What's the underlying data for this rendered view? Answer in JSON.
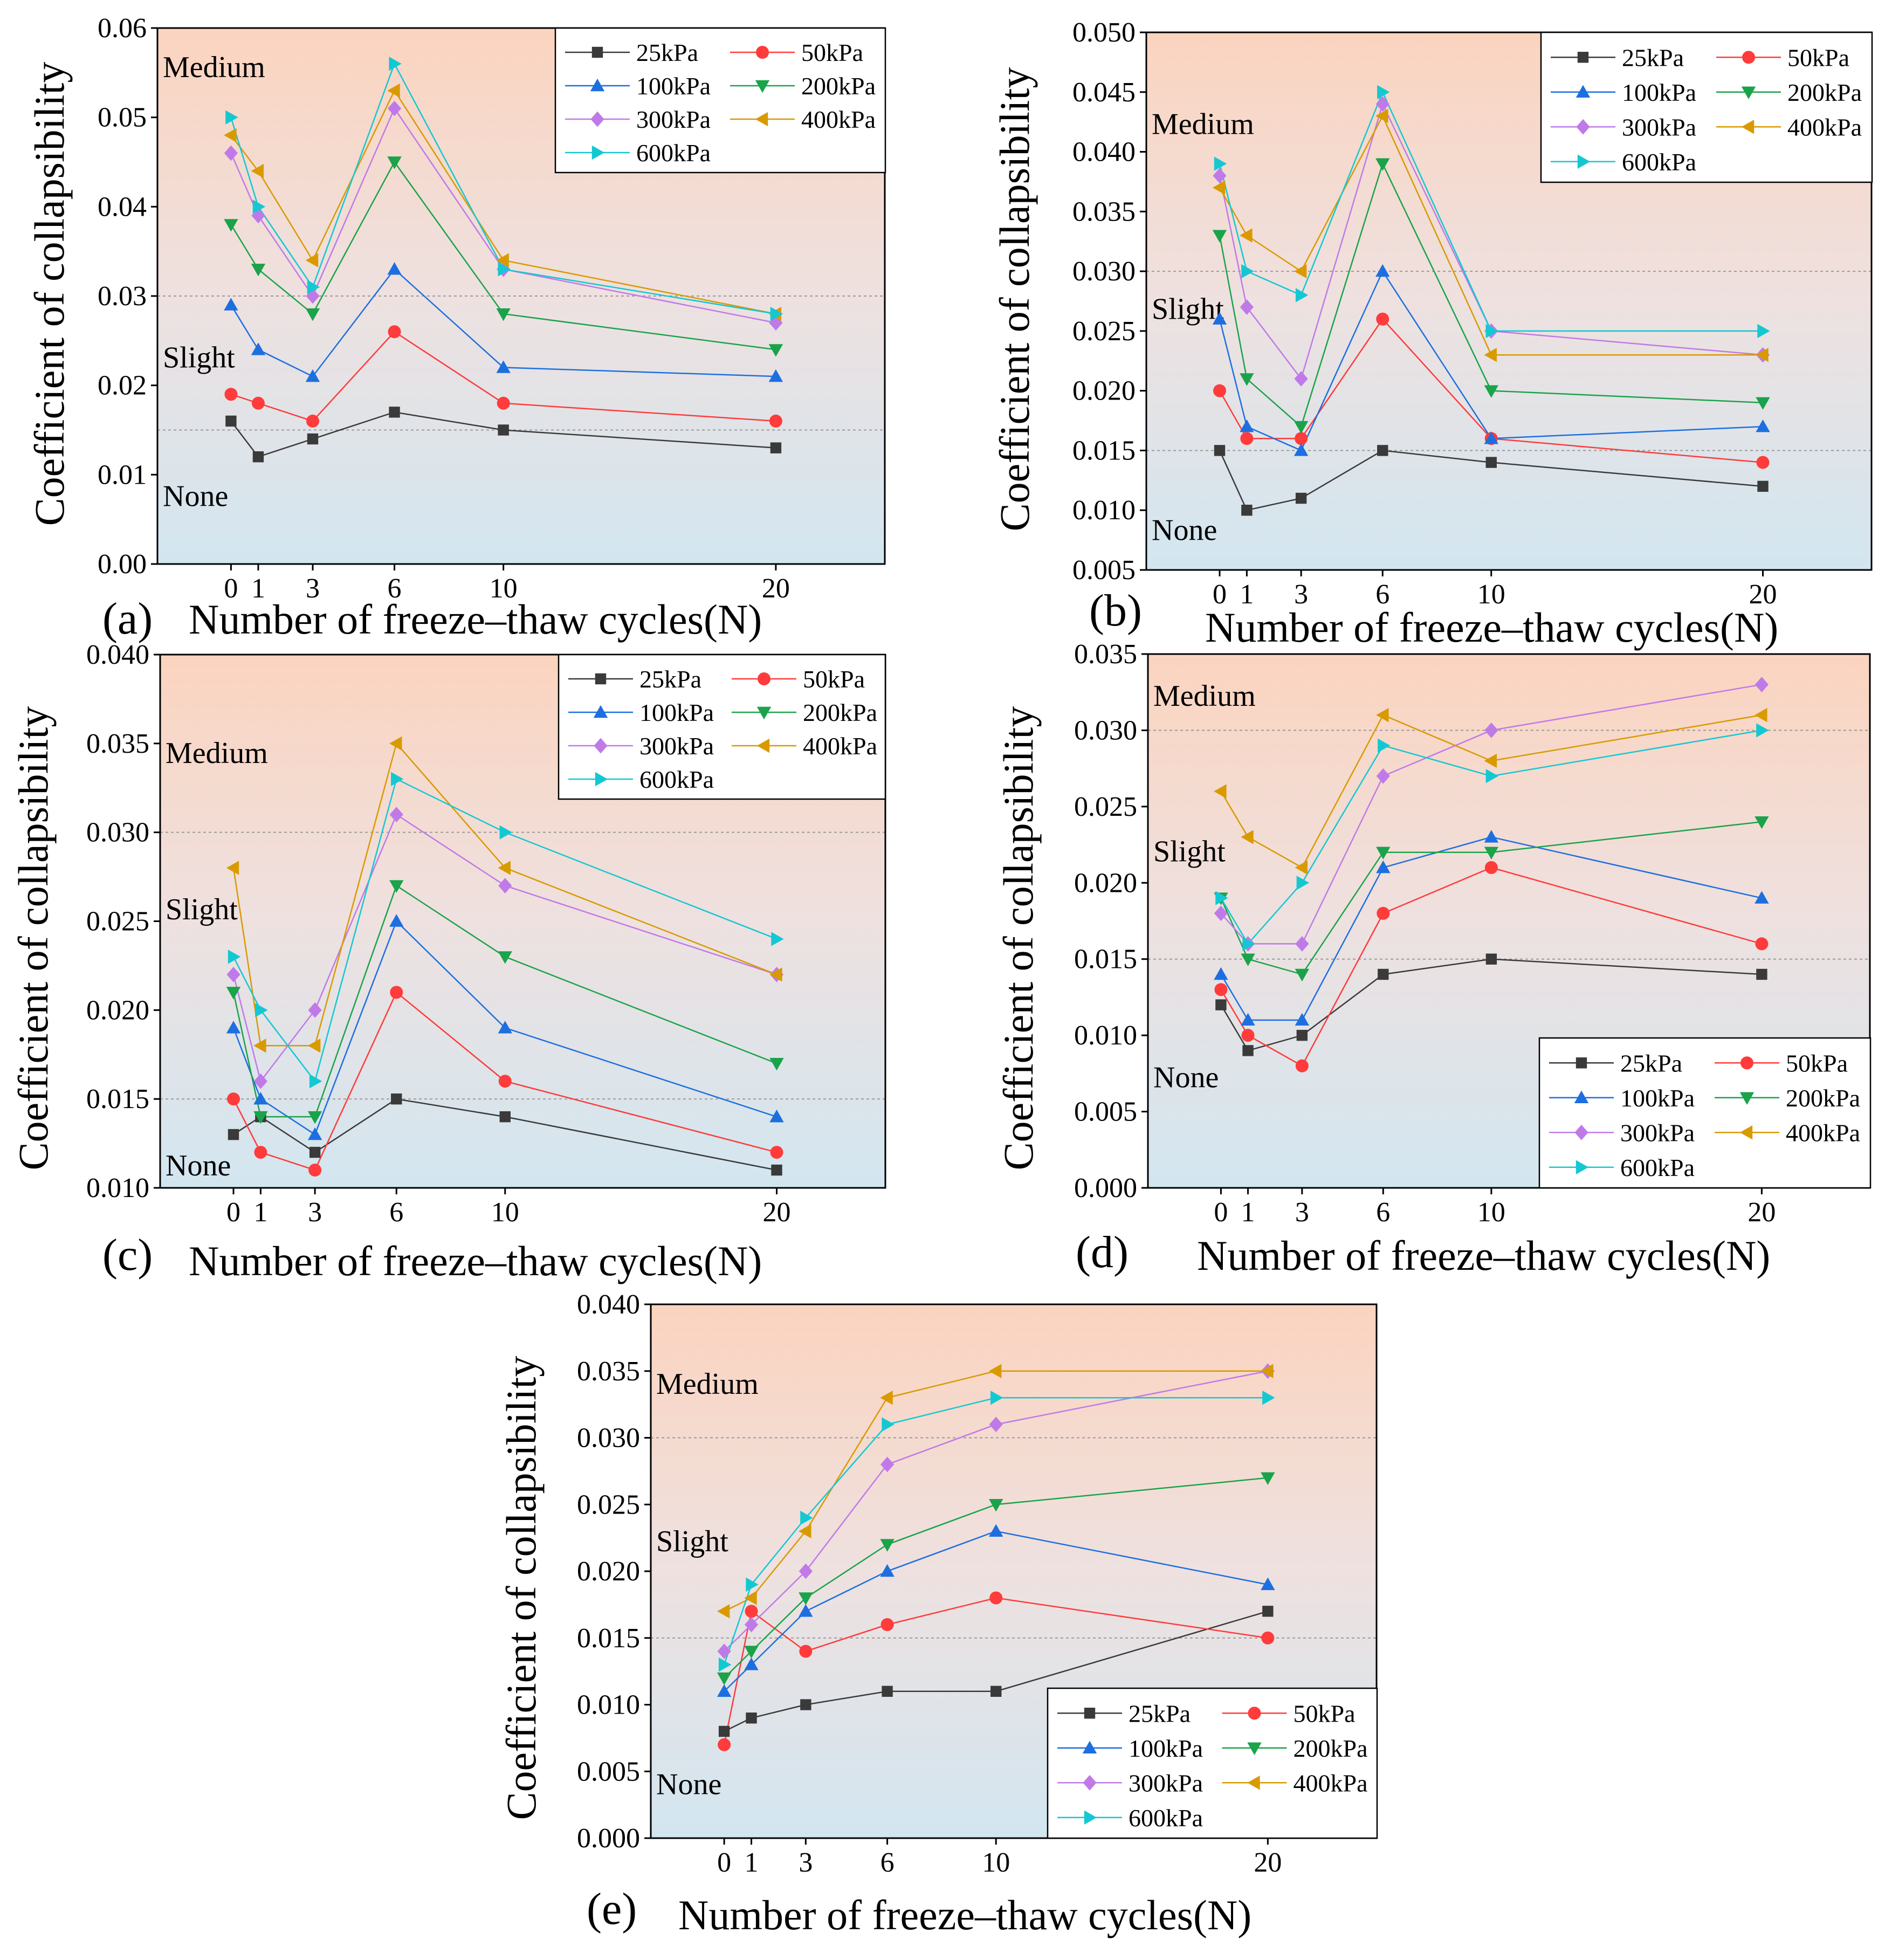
{
  "legend_entries": [
    "25kPa",
    "50kPa",
    "100kPa",
    "200kPa",
    "300kPa",
    "400kPa",
    "600kPa"
  ],
  "series_colors": [
    "#3a3a3a",
    "#ff3b3b",
    "#1d6fe0",
    "#1aa34a",
    "#c07ae8",
    "#d99a00",
    "#14c8d2"
  ],
  "marker_shapes": [
    "square",
    "circle",
    "triangle-up",
    "triangle-down",
    "diamond",
    "triangle-left",
    "triangle-right"
  ],
  "zone_labels": {
    "medium": "Medium",
    "slight": "Slight",
    "none": "None"
  },
  "chart_data": [
    {
      "panel": "(a)",
      "type": "line",
      "xlabel": "Number of freeze–thaw cycles(N)",
      "ylabel": "Coefficient of collapsibility",
      "x": [
        0,
        1,
        3,
        6,
        10,
        20
      ],
      "xticks": [
        "0",
        "1",
        "3",
        "6",
        "10",
        "20"
      ],
      "xlim": [
        -2.7,
        24
      ],
      "ylim": [
        0,
        0.06
      ],
      "yticks": [
        "0.00",
        "0.01",
        "0.02",
        "0.03",
        "0.04",
        "0.05",
        "0.06"
      ],
      "thresholds": [
        0.015,
        0.03
      ],
      "legend_position": "top-right",
      "zone_label_y": {
        "medium": 0.0545,
        "slight": 0.022,
        "none": 0.0065
      },
      "series": [
        {
          "name": "25kPa",
          "values": [
            0.016,
            0.012,
            0.014,
            0.017,
            0.015,
            0.013
          ]
        },
        {
          "name": "50kPa",
          "values": [
            0.019,
            0.018,
            0.016,
            0.026,
            0.018,
            0.016
          ]
        },
        {
          "name": "100kPa",
          "values": [
            0.029,
            0.024,
            0.021,
            0.033,
            0.022,
            0.021
          ]
        },
        {
          "name": "200kPa",
          "values": [
            0.038,
            0.033,
            0.028,
            0.045,
            0.028,
            0.024
          ]
        },
        {
          "name": "300kPa",
          "values": [
            0.046,
            0.039,
            0.03,
            0.051,
            0.033,
            0.027
          ]
        },
        {
          "name": "400kPa",
          "values": [
            0.048,
            0.044,
            0.034,
            0.053,
            0.034,
            0.028
          ]
        },
        {
          "name": "600kPa",
          "values": [
            0.05,
            0.04,
            0.031,
            0.056,
            0.033,
            0.028
          ]
        }
      ]
    },
    {
      "panel": "(b)",
      "type": "line",
      "xlabel": "Number of freeze–thaw cycles(N)",
      "ylabel": "Coefficient of collapsibility",
      "x": [
        0,
        1,
        3,
        6,
        10,
        20
      ],
      "xticks": [
        "0",
        "1",
        "3",
        "6",
        "10",
        "20"
      ],
      "xlim": [
        -2.7,
        24
      ],
      "ylim": [
        0.005,
        0.05
      ],
      "yticks": [
        "0.005",
        "0.010",
        "0.015",
        "0.020",
        "0.025",
        "0.030",
        "0.035",
        "0.040",
        "0.045",
        "0.050"
      ],
      "thresholds": [
        0.015,
        0.03
      ],
      "legend_position": "top-right",
      "zone_label_y": {
        "medium": 0.0415,
        "slight": 0.026,
        "none": 0.0075
      },
      "series": [
        {
          "name": "25kPa",
          "values": [
            0.015,
            0.01,
            0.011,
            0.015,
            0.014,
            0.012
          ]
        },
        {
          "name": "50kPa",
          "values": [
            0.02,
            0.016,
            0.016,
            0.026,
            0.016,
            0.014
          ]
        },
        {
          "name": "100kPa",
          "values": [
            0.026,
            0.017,
            0.015,
            0.03,
            0.016,
            0.017
          ]
        },
        {
          "name": "200kPa",
          "values": [
            0.033,
            0.021,
            0.017,
            0.039,
            0.02,
            0.019
          ]
        },
        {
          "name": "300kPa",
          "values": [
            0.038,
            0.027,
            0.021,
            0.044,
            0.025,
            0.023
          ]
        },
        {
          "name": "400kPa",
          "values": [
            0.037,
            0.033,
            0.03,
            0.043,
            0.023,
            0.023
          ]
        },
        {
          "name": "600kPa",
          "values": [
            0.039,
            0.03,
            0.028,
            0.045,
            0.025,
            0.025
          ]
        }
      ]
    },
    {
      "panel": "(c)",
      "type": "line",
      "xlabel": "Number of freeze–thaw cycles(N)",
      "ylabel": "Coefficient of collapsibility",
      "x": [
        0,
        1,
        3,
        6,
        10,
        20
      ],
      "xticks": [
        "0",
        "1",
        "3",
        "6",
        "10",
        "20"
      ],
      "xlim": [
        -2.7,
        24
      ],
      "ylim": [
        0.01,
        0.04
      ],
      "yticks": [
        "0.010",
        "0.015",
        "0.020",
        "0.025",
        "0.030",
        "0.035",
        "0.040"
      ],
      "thresholds": [
        0.015,
        0.03
      ],
      "legend_position": "top-right",
      "zone_label_y": {
        "medium": 0.0339,
        "slight": 0.0251,
        "none": 0.0107
      },
      "series": [
        {
          "name": "25kPa",
          "values": [
            0.013,
            0.014,
            0.012,
            0.015,
            0.014,
            0.011
          ]
        },
        {
          "name": "50kPa",
          "values": [
            0.015,
            0.012,
            0.011,
            0.021,
            0.016,
            0.012
          ]
        },
        {
          "name": "100kPa",
          "values": [
            0.019,
            0.015,
            0.013,
            0.025,
            0.019,
            0.014
          ]
        },
        {
          "name": "200kPa",
          "values": [
            0.021,
            0.014,
            0.014,
            0.027,
            0.023,
            0.017
          ]
        },
        {
          "name": "300kPa",
          "values": [
            0.022,
            0.016,
            0.02,
            0.031,
            0.027,
            0.022
          ]
        },
        {
          "name": "400kPa",
          "values": [
            0.028,
            0.018,
            0.018,
            0.035,
            0.028,
            0.022
          ]
        },
        {
          "name": "600kPa",
          "values": [
            0.023,
            0.02,
            0.016,
            0.033,
            0.03,
            0.024
          ]
        }
      ]
    },
    {
      "panel": "(d)",
      "type": "line",
      "xlabel": "Number of freeze–thaw cycles(N)",
      "ylabel": "Coefficient of collapsibility",
      "x": [
        0,
        1,
        3,
        6,
        10,
        20
      ],
      "xticks": [
        "0",
        "1",
        "3",
        "6",
        "10",
        "20"
      ],
      "xlim": [
        -2.7,
        24
      ],
      "ylim": [
        0,
        0.035
      ],
      "yticks": [
        "0.000",
        "0.005",
        "0.010",
        "0.015",
        "0.020",
        "0.025",
        "0.030",
        "0.035"
      ],
      "thresholds": [
        0.015,
        0.03
      ],
      "legend_position": "bottom-right",
      "zone_label_y": {
        "medium": 0.0316,
        "slight": 0.0214,
        "none": 0.0066
      },
      "series": [
        {
          "name": "25kPa",
          "values": [
            0.012,
            0.009,
            0.01,
            0.014,
            0.015,
            0.014
          ]
        },
        {
          "name": "50kPa",
          "values": [
            0.013,
            0.01,
            0.008,
            0.018,
            0.021,
            0.016
          ]
        },
        {
          "name": "100kPa",
          "values": [
            0.014,
            0.011,
            0.011,
            0.021,
            0.023,
            0.019
          ]
        },
        {
          "name": "200kPa",
          "values": [
            0.019,
            0.015,
            0.014,
            0.022,
            0.022,
            0.024
          ]
        },
        {
          "name": "300kPa",
          "values": [
            0.018,
            0.016,
            0.016,
            0.027,
            0.03,
            0.033
          ]
        },
        {
          "name": "400kPa",
          "values": [
            0.026,
            0.023,
            0.021,
            0.031,
            0.028,
            0.031
          ]
        },
        {
          "name": "600kPa",
          "values": [
            0.019,
            0.016,
            0.02,
            0.029,
            0.027,
            0.03
          ]
        }
      ]
    },
    {
      "panel": "(e)",
      "type": "line",
      "xlabel": "Number of freeze–thaw cycles(N)",
      "ylabel": "Coefficient of collapsibility",
      "x": [
        0,
        1,
        3,
        6,
        10,
        20
      ],
      "xticks": [
        "0",
        "1",
        "3",
        "6",
        "10",
        "20"
      ],
      "xlim": [
        -2.7,
        24
      ],
      "ylim": [
        0,
        0.04
      ],
      "yticks": [
        "0.000",
        "0.005",
        "0.010",
        "0.015",
        "0.020",
        "0.025",
        "0.030",
        "0.035",
        "0.040"
      ],
      "thresholds": [
        0.015,
        0.03
      ],
      "legend_position": "bottom-right",
      "zone_label_y": {
        "medium": 0.0333,
        "slight": 0.0215,
        "none": 0.0033
      },
      "series": [
        {
          "name": "25kPa",
          "values": [
            0.008,
            0.009,
            0.01,
            0.011,
            0.011,
            0.017
          ]
        },
        {
          "name": "50kPa",
          "values": [
            0.007,
            0.017,
            0.014,
            0.016,
            0.018,
            0.015
          ]
        },
        {
          "name": "100kPa",
          "values": [
            0.011,
            0.013,
            0.017,
            0.02,
            0.023,
            0.019
          ]
        },
        {
          "name": "200kPa",
          "values": [
            0.012,
            0.014,
            0.018,
            0.022,
            0.025,
            0.027
          ]
        },
        {
          "name": "300kPa",
          "values": [
            0.014,
            0.016,
            0.02,
            0.028,
            0.031,
            0.035
          ]
        },
        {
          "name": "400kPa",
          "values": [
            0.017,
            0.018,
            0.023,
            0.033,
            0.035,
            0.035
          ]
        },
        {
          "name": "600kPa",
          "values": [
            0.013,
            0.019,
            0.024,
            0.031,
            0.033,
            0.033
          ]
        }
      ]
    }
  ]
}
